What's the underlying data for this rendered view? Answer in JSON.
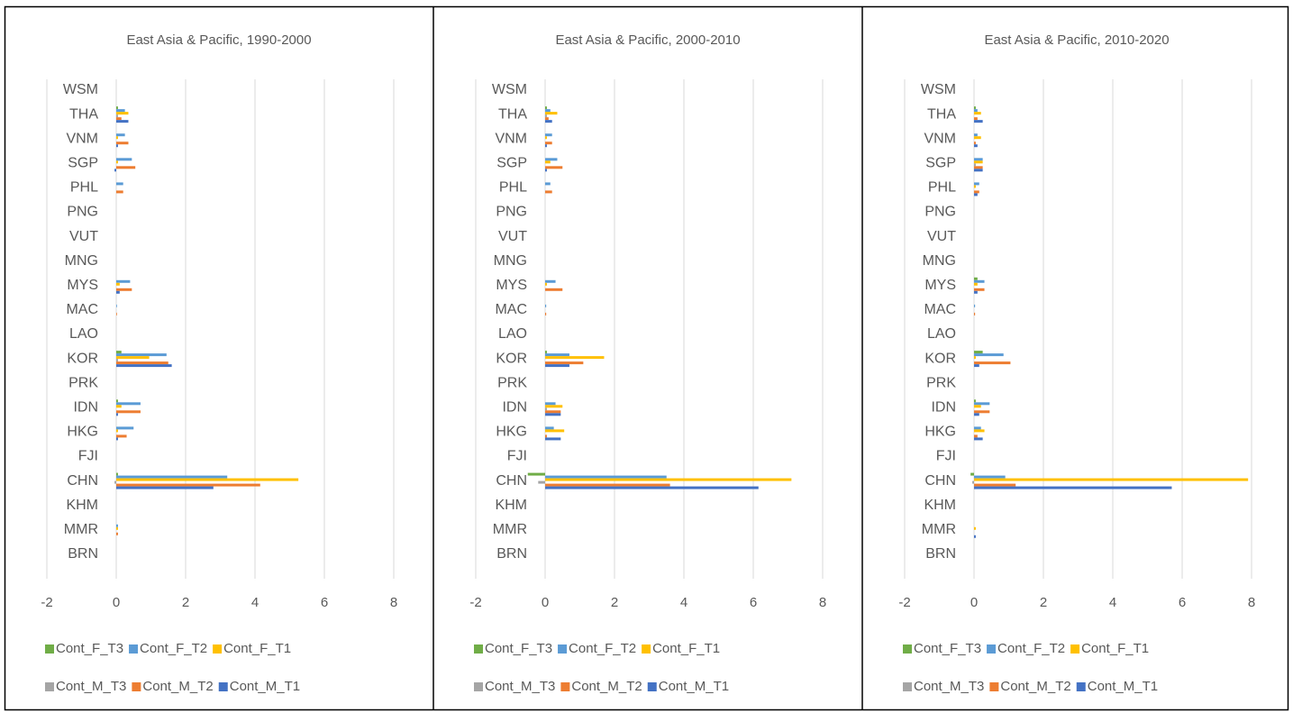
{
  "chart_data": [
    {
      "type": "bar",
      "orientation": "horizontal",
      "title": "East Asia & Pacific, 1990-2000",
      "categories": [
        "WSM",
        "THA",
        "VNM",
        "SGP",
        "PHL",
        "PNG",
        "VUT",
        "MNG",
        "MYS",
        "MAC",
        "LAO",
        "KOR",
        "PRK",
        "IDN",
        "HKG",
        "FJI",
        "CHN",
        "KHM",
        "MMR",
        "BRN"
      ],
      "series": [
        {
          "name": "Cont_F_T3",
          "color": "#70ad47",
          "values": [
            0,
            0.05,
            0,
            0,
            0,
            0,
            0,
            0,
            0,
            0,
            0,
            0.15,
            0,
            0.05,
            0,
            0,
            0.05,
            0,
            0,
            0
          ]
        },
        {
          "name": "Cont_F_T2",
          "color": "#5b9bd5",
          "values": [
            0,
            0.25,
            0.25,
            0.45,
            0.2,
            0,
            0,
            0,
            0.4,
            0.02,
            0,
            1.45,
            0,
            0.7,
            0.5,
            0,
            3.2,
            0,
            0.05,
            0
          ]
        },
        {
          "name": "Cont_F_T1",
          "color": "#ffc000",
          "values": [
            0,
            0.35,
            0.05,
            0.05,
            0,
            0,
            0,
            0,
            0.1,
            0,
            0,
            0.95,
            0,
            0.15,
            0.05,
            0,
            5.25,
            0,
            0.05,
            0
          ]
        },
        {
          "name": "Cont_M_T3",
          "color": "#a5a5a5",
          "values": [
            0,
            0.05,
            0,
            0,
            0,
            0,
            0,
            0,
            0,
            0,
            0,
            0.05,
            0,
            0,
            0,
            0,
            -0.05,
            0,
            0,
            0
          ]
        },
        {
          "name": "Cont_M_T2",
          "color": "#ed7d31",
          "values": [
            0,
            0.15,
            0.35,
            0.55,
            0.2,
            0,
            0,
            0,
            0.45,
            0.02,
            0,
            1.5,
            0,
            0.7,
            0.3,
            0,
            4.15,
            0,
            0.05,
            0
          ]
        },
        {
          "name": "Cont_M_T1",
          "color": "#4472c4",
          "values": [
            0,
            0.35,
            0.05,
            -0.05,
            0,
            0,
            0,
            0,
            0.1,
            0,
            0,
            1.6,
            0,
            0.05,
            0.05,
            0,
            2.8,
            0,
            0,
            0
          ]
        }
      ],
      "xlim": [
        -2,
        8
      ],
      "xticks": [
        -2,
        0,
        2,
        4,
        6,
        8
      ],
      "grid": true,
      "legend": "bottom"
    },
    {
      "type": "bar",
      "orientation": "horizontal",
      "title": "East Asia & Pacific, 2000-2010",
      "categories": [
        "WSM",
        "THA",
        "VNM",
        "SGP",
        "PHL",
        "PNG",
        "VUT",
        "MNG",
        "MYS",
        "MAC",
        "LAO",
        "KOR",
        "PRK",
        "IDN",
        "HKG",
        "FJI",
        "CHN",
        "KHM",
        "MMR",
        "BRN"
      ],
      "series": [
        {
          "name": "Cont_F_T3",
          "color": "#70ad47",
          "values": [
            0,
            0.05,
            0,
            0,
            0,
            0,
            0,
            0,
            0,
            0,
            0,
            0.05,
            0,
            0,
            0,
            0,
            -0.5,
            0,
            0,
            0
          ]
        },
        {
          "name": "Cont_F_T2",
          "color": "#5b9bd5",
          "values": [
            0,
            0.15,
            0.2,
            0.35,
            0.15,
            0,
            0,
            0,
            0.3,
            0.03,
            0,
            0.7,
            0,
            0.3,
            0.25,
            0,
            3.5,
            0,
            0,
            0
          ]
        },
        {
          "name": "Cont_F_T1",
          "color": "#ffc000",
          "values": [
            0,
            0.35,
            0.05,
            0.15,
            0,
            0,
            0,
            0,
            0.05,
            0,
            0,
            1.7,
            0,
            0.5,
            0.55,
            0,
            7.1,
            0,
            0,
            0
          ]
        },
        {
          "name": "Cont_M_T3",
          "color": "#a5a5a5",
          "values": [
            0,
            0.05,
            0,
            0,
            0,
            0,
            0,
            0,
            0,
            0,
            0,
            0,
            0,
            0.05,
            0,
            0,
            -0.2,
            0,
            0,
            0
          ]
        },
        {
          "name": "Cont_M_T2",
          "color": "#ed7d31",
          "values": [
            0,
            0.1,
            0.2,
            0.5,
            0.2,
            0,
            0,
            0,
            0.5,
            0.03,
            0,
            1.1,
            0,
            0.45,
            0.05,
            0,
            3.6,
            0,
            0,
            0
          ]
        },
        {
          "name": "Cont_M_T1",
          "color": "#4472c4",
          "values": [
            0,
            0.2,
            0.05,
            0.05,
            0,
            0,
            0,
            0,
            0,
            0,
            0,
            0.7,
            0,
            0.45,
            0.45,
            0,
            6.15,
            0,
            0,
            0
          ]
        }
      ],
      "xlim": [
        -2,
        8
      ],
      "xticks": [
        -2,
        0,
        2,
        4,
        6,
        8
      ],
      "grid": true,
      "legend": "bottom"
    },
    {
      "type": "bar",
      "orientation": "horizontal",
      "title": "East Asia & Pacific, 2010-2020",
      "categories": [
        "WSM",
        "THA",
        "VNM",
        "SGP",
        "PHL",
        "PNG",
        "VUT",
        "MNG",
        "MYS",
        "MAC",
        "LAO",
        "KOR",
        "PRK",
        "IDN",
        "HKG",
        "FJI",
        "CHN",
        "KHM",
        "MMR",
        "BRN"
      ],
      "series": [
        {
          "name": "Cont_F_T3",
          "color": "#70ad47",
          "values": [
            0,
            0.05,
            0,
            0,
            0,
            0,
            0,
            0,
            0.1,
            0,
            0,
            0.25,
            0,
            0.05,
            0,
            0,
            -0.1,
            0,
            0,
            0
          ]
        },
        {
          "name": "Cont_F_T2",
          "color": "#5b9bd5",
          "values": [
            0,
            0.1,
            0.1,
            0.25,
            0.15,
            0,
            0,
            0,
            0.3,
            0.03,
            0,
            0.85,
            0,
            0.45,
            0.2,
            0,
            0.9,
            0,
            0,
            0
          ]
        },
        {
          "name": "Cont_F_T1",
          "color": "#ffc000",
          "values": [
            0,
            0.2,
            0.2,
            0.25,
            0.05,
            0,
            0,
            0,
            0.1,
            0,
            0,
            0.05,
            0,
            0.2,
            0.3,
            0,
            7.9,
            0,
            0.05,
            0
          ]
        },
        {
          "name": "Cont_M_T3",
          "color": "#a5a5a5",
          "values": [
            0,
            0,
            0,
            0.05,
            0,
            0,
            0,
            0,
            0,
            0,
            0,
            0,
            0,
            0,
            0,
            0,
            -0.05,
            0,
            0,
            0
          ]
        },
        {
          "name": "Cont_M_T2",
          "color": "#ed7d31",
          "values": [
            0,
            0.1,
            0.05,
            0.25,
            0.15,
            0,
            0,
            0,
            0.3,
            0.03,
            0,
            1.05,
            0,
            0.45,
            0.1,
            0,
            1.2,
            0,
            0,
            0
          ]
        },
        {
          "name": "Cont_M_T1",
          "color": "#4472c4",
          "values": [
            0,
            0.25,
            0.1,
            0.25,
            0.1,
            0,
            0,
            0,
            0.1,
            0,
            0,
            0.15,
            0,
            0.15,
            0.25,
            0,
            5.7,
            0,
            0.05,
            0
          ]
        }
      ],
      "xlim": [
        -2,
        8
      ],
      "xticks": [
        -2,
        0,
        2,
        4,
        6,
        8
      ],
      "grid": true,
      "legend": "bottom"
    }
  ]
}
